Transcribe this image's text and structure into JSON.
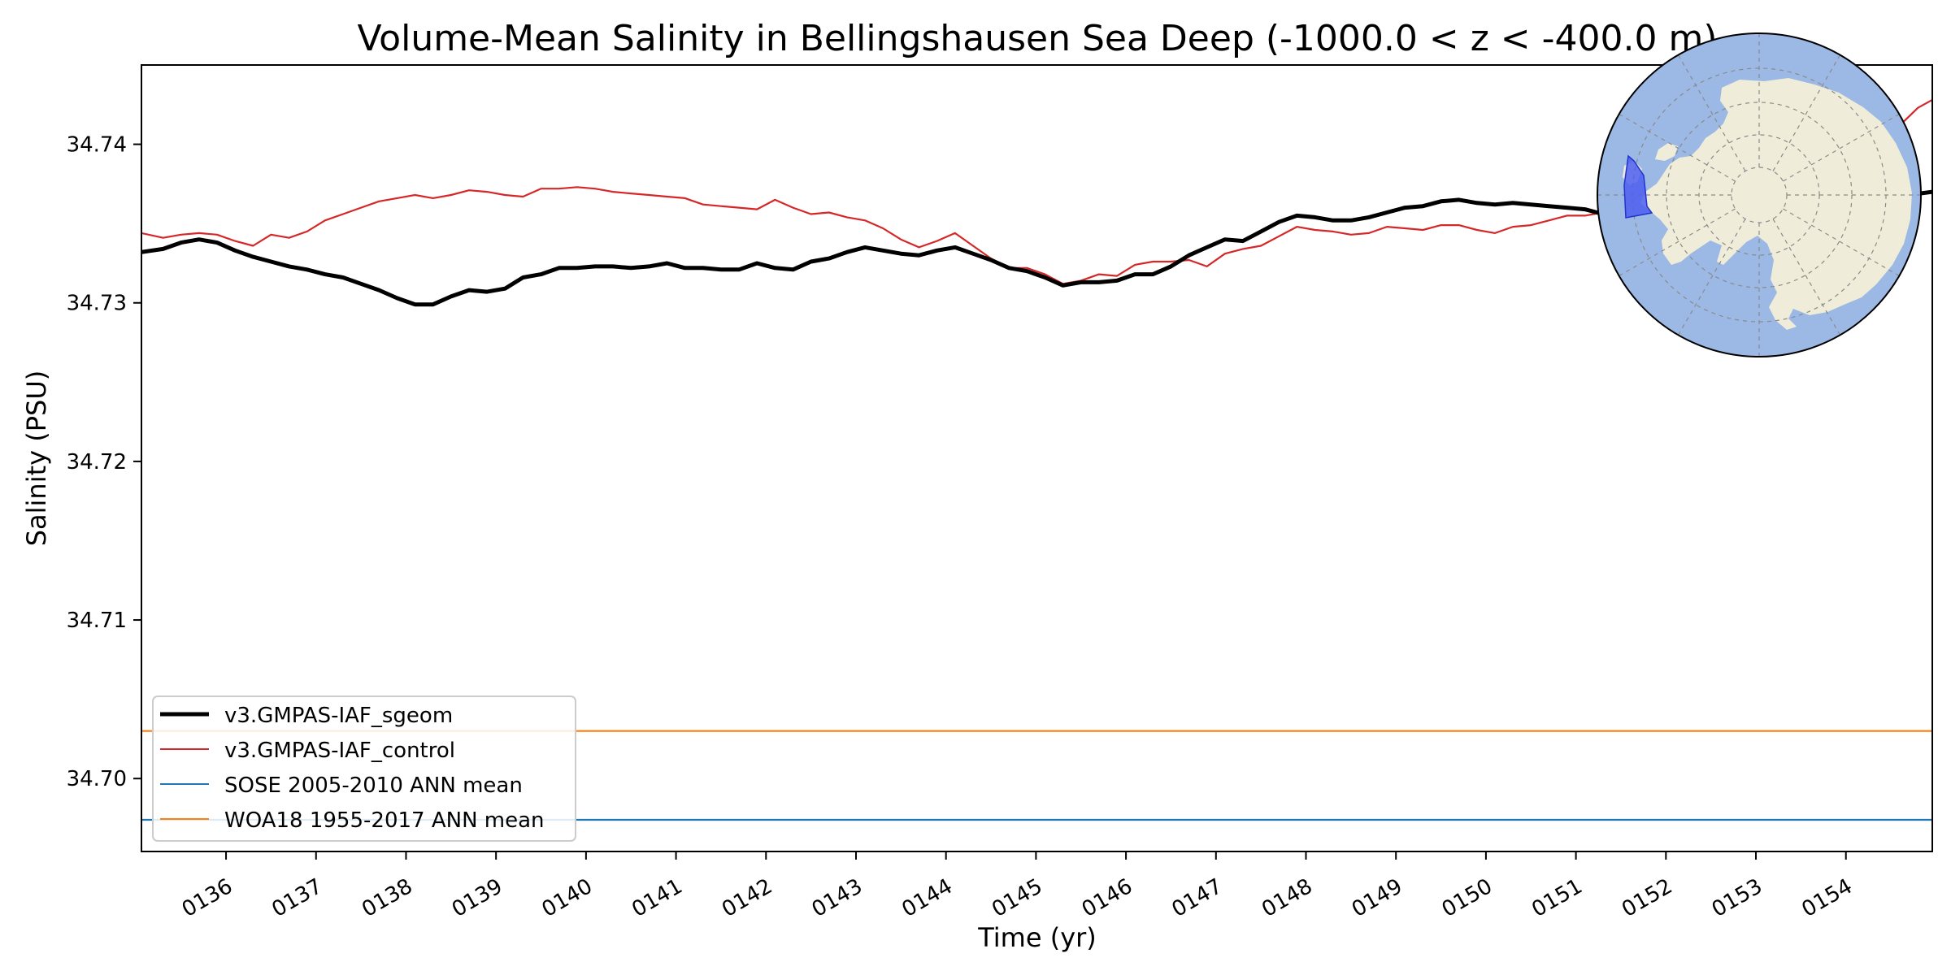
{
  "chart_data": {
    "type": "line",
    "title": "Volume-Mean Salinity in Bellingshausen Sea Deep (-1000.0 < z < -400.0 m)",
    "xlabel": "Time (yr)",
    "ylabel": "Salinity (PSU)",
    "xlim": [
      135.06,
      154.96
    ],
    "ylim": [
      34.6954,
      34.745
    ],
    "x_ticks": [
      136,
      137,
      138,
      139,
      140,
      141,
      142,
      143,
      144,
      145,
      146,
      147,
      148,
      149,
      150,
      151,
      152,
      153,
      154
    ],
    "x_tick_labels": [
      "0136",
      "0137",
      "0138",
      "0139",
      "0140",
      "0141",
      "0142",
      "0143",
      "0144",
      "0145",
      "0146",
      "0147",
      "0148",
      "0149",
      "0150",
      "0151",
      "0152",
      "0153",
      "0154"
    ],
    "y_ticks": [
      34.7,
      34.71,
      34.72,
      34.73,
      34.74
    ],
    "y_tick_labels": [
      "34.70",
      "34.71",
      "34.72",
      "34.73",
      "34.74"
    ],
    "grid": false,
    "legend_position": "lower-left",
    "series": [
      {
        "name": "v3.GMPAS-IAF_sgeom",
        "color": "#000000",
        "line_width": "thick",
        "x": [
          135.06,
          135.3,
          135.5,
          135.7,
          135.9,
          136.1,
          136.3,
          136.5,
          136.7,
          136.9,
          137.1,
          137.3,
          137.5,
          137.7,
          137.9,
          138.1,
          138.3,
          138.5,
          138.7,
          138.9,
          139.1,
          139.3,
          139.5,
          139.7,
          139.9,
          140.1,
          140.3,
          140.5,
          140.7,
          140.9,
          141.1,
          141.3,
          141.5,
          141.7,
          141.9,
          142.1,
          142.3,
          142.5,
          142.7,
          142.9,
          143.1,
          143.3,
          143.5,
          143.7,
          143.9,
          144.1,
          144.3,
          144.5,
          144.7,
          144.9,
          145.1,
          145.3,
          145.5,
          145.7,
          145.9,
          146.1,
          146.3,
          146.5,
          146.7,
          146.9,
          147.1,
          147.3,
          147.5,
          147.7,
          147.9,
          148.1,
          148.3,
          148.5,
          148.7,
          148.9,
          149.1,
          149.3,
          149.5,
          149.7,
          149.9,
          150.1,
          150.3,
          150.5,
          150.7,
          150.9,
          151.1,
          151.3,
          151.6,
          152.0,
          152.5,
          153.0,
          153.5,
          154.0,
          154.4,
          154.7,
          154.96
        ],
        "y": [
          34.7332,
          34.7334,
          34.7338,
          34.734,
          34.7338,
          34.7333,
          34.7329,
          34.7326,
          34.7323,
          34.7321,
          34.7318,
          34.7316,
          34.7312,
          34.7308,
          34.7303,
          34.7299,
          34.7299,
          34.7304,
          34.7308,
          34.7307,
          34.7309,
          34.7316,
          34.7318,
          34.7322,
          34.7322,
          34.7323,
          34.7323,
          34.7322,
          34.7323,
          34.7325,
          34.7322,
          34.7322,
          34.7321,
          34.7321,
          34.7325,
          34.7322,
          34.7321,
          34.7326,
          34.7328,
          34.7332,
          34.7335,
          34.7333,
          34.7331,
          34.733,
          34.7333,
          34.7335,
          34.7331,
          34.7327,
          34.7322,
          34.732,
          34.7316,
          34.7311,
          34.7313,
          34.7313,
          34.7314,
          34.7318,
          34.7318,
          34.7323,
          34.733,
          34.7335,
          34.734,
          34.7339,
          34.7345,
          34.7351,
          34.7355,
          34.7354,
          34.7352,
          34.7352,
          34.7354,
          34.7357,
          34.736,
          34.7361,
          34.7364,
          34.7365,
          34.7363,
          34.7362,
          34.7363,
          34.7362,
          34.7361,
          34.736,
          34.7359,
          34.7356,
          34.7358,
          34.736,
          34.7362,
          34.7362,
          34.7363,
          34.7364,
          34.7366,
          34.7368,
          34.737
        ]
      },
      {
        "name": "v3.GMPAS-IAF_control",
        "color": "#d62728",
        "line_width": "thin",
        "x": [
          135.06,
          135.3,
          135.5,
          135.7,
          135.9,
          136.1,
          136.3,
          136.5,
          136.7,
          136.9,
          137.1,
          137.3,
          137.5,
          137.7,
          137.9,
          138.1,
          138.3,
          138.5,
          138.7,
          138.9,
          139.1,
          139.3,
          139.5,
          139.7,
          139.9,
          140.1,
          140.3,
          140.5,
          140.7,
          140.9,
          141.1,
          141.3,
          141.5,
          141.7,
          141.9,
          142.1,
          142.3,
          142.5,
          142.7,
          142.9,
          143.1,
          143.3,
          143.5,
          143.7,
          143.9,
          144.1,
          144.3,
          144.5,
          144.7,
          144.9,
          145.1,
          145.3,
          145.5,
          145.7,
          145.9,
          146.1,
          146.3,
          146.5,
          146.7,
          146.9,
          147.1,
          147.3,
          147.5,
          147.7,
          147.9,
          148.1,
          148.3,
          148.5,
          148.7,
          148.9,
          149.1,
          149.3,
          149.5,
          149.7,
          149.9,
          150.1,
          150.3,
          150.5,
          150.7,
          150.9,
          151.1,
          151.3,
          151.6,
          152.0,
          152.5,
          153.0,
          153.5,
          154.0,
          154.3,
          154.6,
          154.8,
          154.96
        ],
        "y": [
          34.7344,
          34.7341,
          34.7343,
          34.7344,
          34.7343,
          34.7339,
          34.7336,
          34.7343,
          34.7341,
          34.7345,
          34.7352,
          34.7356,
          34.736,
          34.7364,
          34.7366,
          34.7368,
          34.7366,
          34.7368,
          34.7371,
          34.737,
          34.7368,
          34.7367,
          34.7372,
          34.7372,
          34.7373,
          34.7372,
          34.737,
          34.7369,
          34.7368,
          34.7367,
          34.7366,
          34.7362,
          34.7361,
          34.736,
          34.7359,
          34.7365,
          34.736,
          34.7356,
          34.7357,
          34.7354,
          34.7352,
          34.7347,
          34.734,
          34.7335,
          34.7339,
          34.7344,
          34.7336,
          34.7328,
          34.7322,
          34.7322,
          34.7318,
          34.7312,
          34.7314,
          34.7318,
          34.7317,
          34.7324,
          34.7326,
          34.7326,
          34.7327,
          34.7323,
          34.7331,
          34.7334,
          34.7336,
          34.7342,
          34.7348,
          34.7346,
          34.7345,
          34.7343,
          34.7344,
          34.7348,
          34.7347,
          34.7346,
          34.7349,
          34.7349,
          34.7346,
          34.7344,
          34.7348,
          34.7349,
          34.7352,
          34.7355,
          34.7355,
          34.7357,
          34.7358,
          34.736,
          34.7362,
          34.7365,
          34.737,
          34.7385,
          34.74,
          34.7412,
          34.7423,
          34.7428
        ]
      },
      {
        "name": "SOSE 2005-2010 ANN mean",
        "color": "#1f77b4",
        "line_width": "thin",
        "x": [
          135.06,
          154.96
        ],
        "y": [
          34.6974,
          34.6974
        ]
      },
      {
        "name": "WOA18 1955-2017 ANN mean",
        "color": "#ff7f0e",
        "line_width": "thin",
        "x": [
          135.06,
          154.96
        ],
        "y": [
          34.703,
          34.703
        ]
      }
    ],
    "inset_map": {
      "projection": "south-polar-stereographic",
      "ocean_color": "#9bb9e4",
      "land_color": "#efedd9",
      "region_color": "#4d5ef0",
      "position": "top-right"
    }
  }
}
